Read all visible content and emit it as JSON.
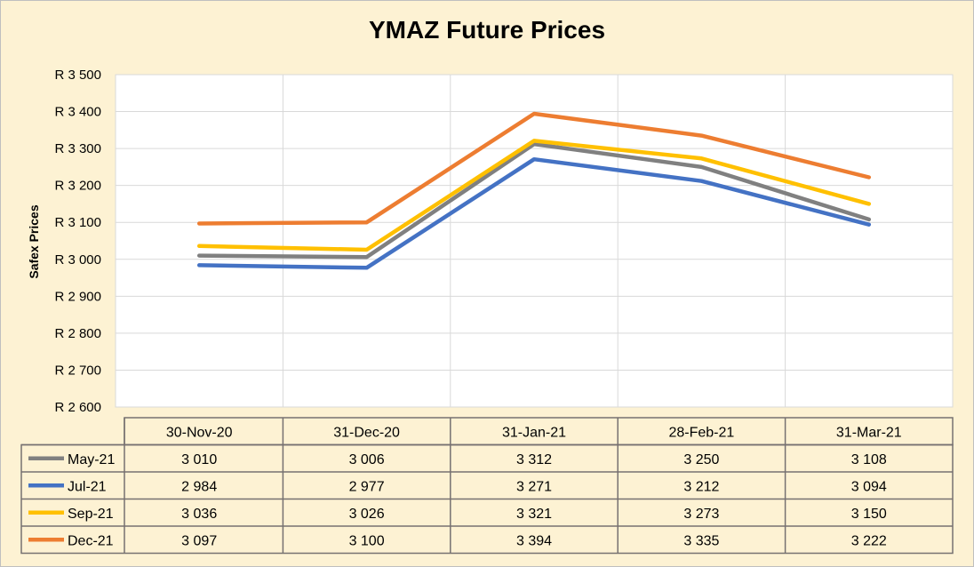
{
  "chart_data": {
    "type": "line",
    "title": "YMAZ Future Prices",
    "ylabel": "Safex Prices",
    "xlabel": "",
    "ylim": [
      2600,
      3500
    ],
    "yticks": [
      2600,
      2700,
      2800,
      2900,
      3000,
      3100,
      3200,
      3300,
      3400,
      3500
    ],
    "ytick_labels": [
      "R 2 600",
      "R 2 700",
      "R 2 800",
      "R 2 900",
      "R 3 000",
      "R 3 100",
      "R 3 200",
      "R 3 300",
      "R 3 400",
      "R 3 500"
    ],
    "grid": true,
    "legend_placement": "data-table-left",
    "categories": [
      "30-Nov-20",
      "31-Dec-20",
      "31-Jan-21",
      "28-Feb-21",
      "31-Mar-21"
    ],
    "series": [
      {
        "name": "May-21",
        "color": "#808080",
        "values": [
          3010,
          3006,
          3312,
          3250,
          3108
        ],
        "labels": [
          "3 010",
          "3 006",
          "3 312",
          "3 250",
          "3 108"
        ]
      },
      {
        "name": "Jul-21",
        "color": "#4472c4",
        "values": [
          2984,
          2977,
          3271,
          3212,
          3094
        ],
        "labels": [
          "2 984",
          "2 977",
          "3 271",
          "3 212",
          "3 094"
        ]
      },
      {
        "name": "Sep-21",
        "color": "#ffc000",
        "values": [
          3036,
          3026,
          3321,
          3273,
          3150
        ],
        "labels": [
          "3 036",
          "3 026",
          "3 321",
          "3 273",
          "3 150"
        ]
      },
      {
        "name": "Dec-21",
        "color": "#ed7d31",
        "values": [
          3097,
          3100,
          3394,
          3335,
          3222
        ],
        "labels": [
          "3 097",
          "3 100",
          "3 394",
          "3 335",
          "3 222"
        ]
      }
    ]
  }
}
